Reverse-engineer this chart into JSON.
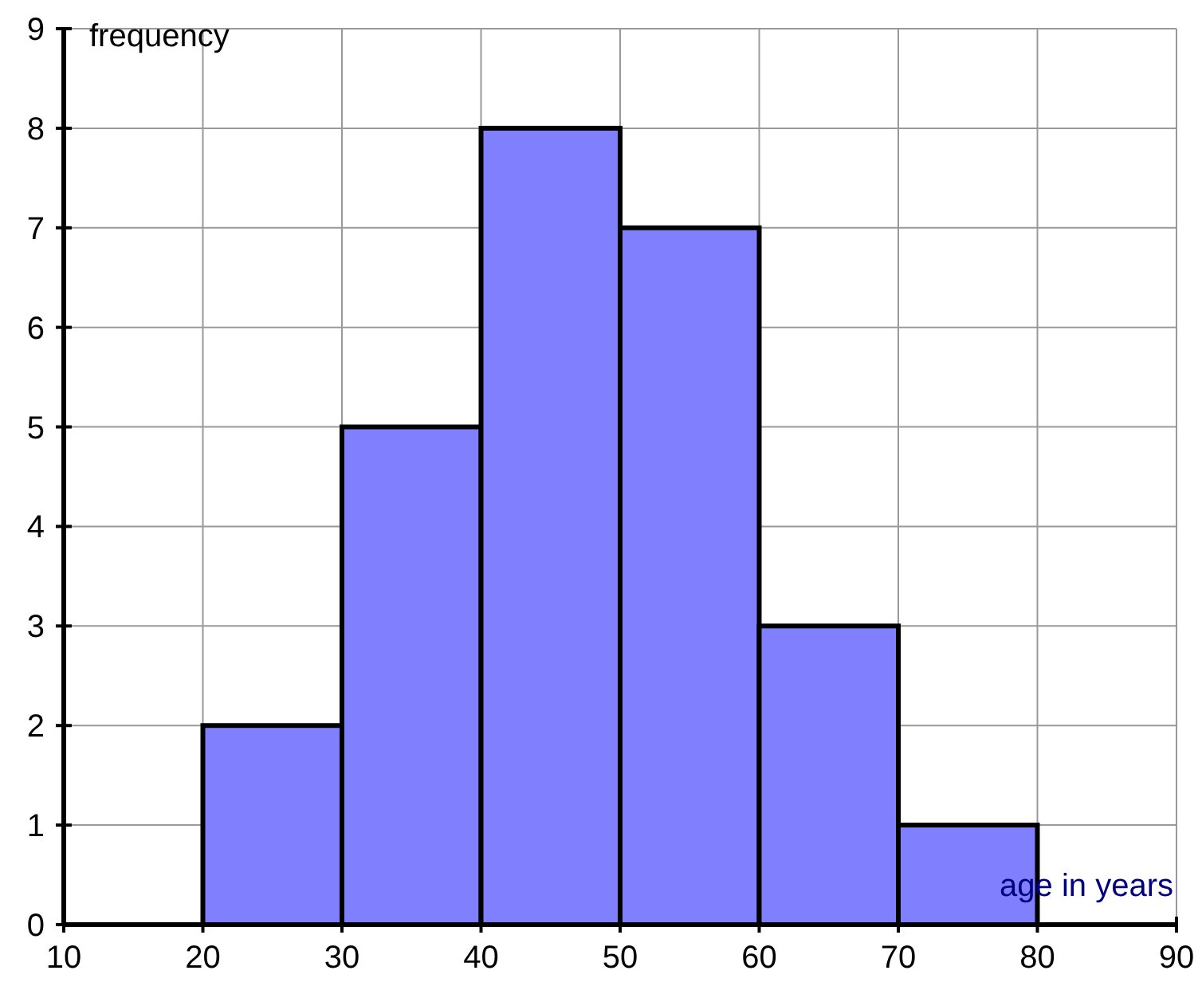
{
  "chart_data": {
    "type": "histogram",
    "xlabel": "age in years",
    "ylabel": "frequency",
    "bins": [
      20,
      30,
      40,
      50,
      60,
      70,
      80
    ],
    "values": [
      2,
      5,
      8,
      7,
      3,
      1
    ],
    "color": "#8080ff",
    "xlim": [
      10,
      90
    ],
    "xticks": [
      10,
      20,
      30,
      40,
      50,
      60,
      70,
      80,
      90
    ],
    "ylim": [
      0,
      9
    ],
    "yticks": [
      0,
      1,
      2,
      3,
      4,
      5,
      6,
      7,
      8,
      9
    ],
    "grid": true
  }
}
